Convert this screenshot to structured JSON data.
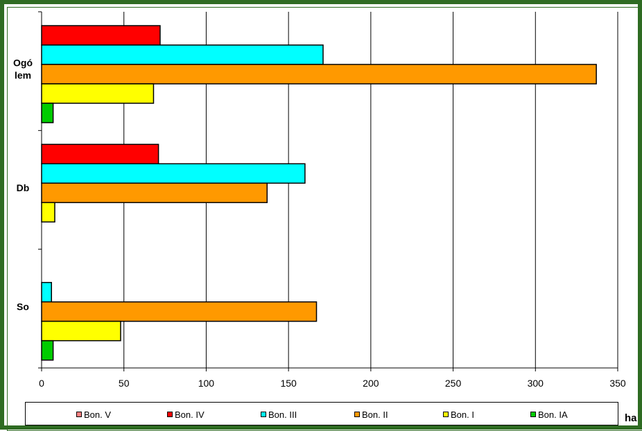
{
  "chart_data": {
    "type": "bar",
    "orientation": "horizontal",
    "categories": [
      "Ogó lem",
      "Db",
      "So"
    ],
    "category_label_lines": [
      [
        "Ogó",
        "lem"
      ],
      [
        "Db"
      ],
      [
        "So"
      ]
    ],
    "series": [
      {
        "name": "Bon. V",
        "color": "#ff8080",
        "values": [
          0,
          0,
          0
        ]
      },
      {
        "name": "Bon. IV",
        "color": "#ff0000",
        "values": [
          72,
          71,
          0
        ]
      },
      {
        "name": "Bon. III",
        "color": "#00ffff",
        "values": [
          171,
          160,
          6
        ]
      },
      {
        "name": "Bon. II",
        "color": "#ff9900",
        "values": [
          337,
          137,
          167
        ]
      },
      {
        "name": "Bon. I",
        "color": "#ffff00",
        "values": [
          68,
          8,
          48
        ]
      },
      {
        "name": "Bon. IA",
        "color": "#00cc00",
        "values": [
          7,
          0,
          7
        ]
      }
    ],
    "x_ticks": [
      "0",
      "50",
      "100",
      "150",
      "200",
      "250",
      "300",
      "350"
    ],
    "xlim": [
      0,
      350
    ],
    "xlabel": "ha",
    "grid": "vertical",
    "legend_position": "bottom"
  }
}
